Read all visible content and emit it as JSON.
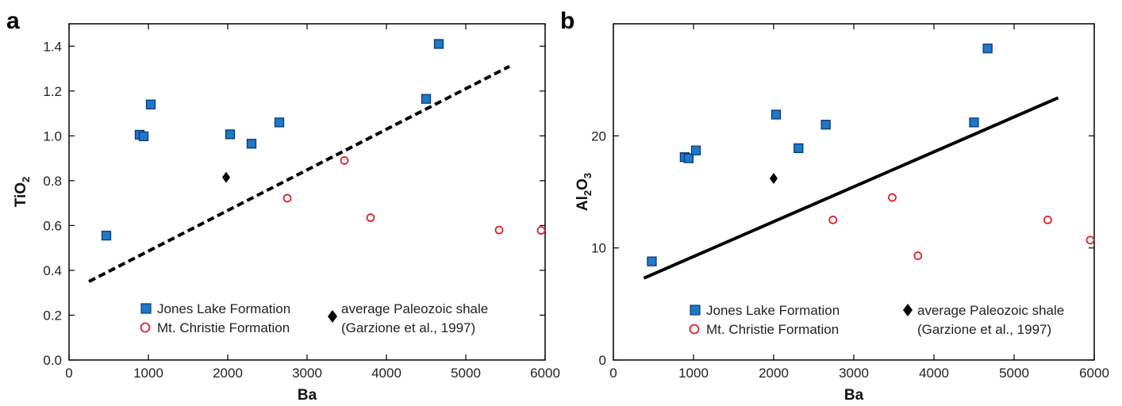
{
  "chart_data": [
    {
      "type": "scatter",
      "panel_label": "a",
      "xlabel": "Ba",
      "ylabel": "TiO",
      "ylabel_sub": "2",
      "xlim": [
        0,
        6000
      ],
      "ylim": [
        0,
        1.5
      ],
      "xticks": [
        0,
        1000,
        2000,
        3000,
        4000,
        5000,
        6000
      ],
      "yticks": [
        0.0,
        0.2,
        0.4,
        0.6,
        0.8,
        1.0,
        1.2,
        1.4
      ],
      "ytick_labels": [
        "0.0",
        "0.2",
        "0.4",
        "0.6",
        "0.8",
        "1.0",
        "1.2",
        "1.4"
      ],
      "series": [
        {
          "name": "Jones Lake Formation",
          "marker": "square",
          "points": [
            [
              470,
              0.555
            ],
            [
              890,
              1.005
            ],
            [
              940,
              0.998
            ],
            [
              1030,
              1.14
            ],
            [
              2030,
              1.007
            ],
            [
              2300,
              0.965
            ],
            [
              2650,
              1.06
            ],
            [
              4500,
              1.165
            ],
            [
              4660,
              1.41
            ]
          ]
        },
        {
          "name": "Mt. Christie Formation",
          "marker": "open-circle",
          "points": [
            [
              2750,
              0.722
            ],
            [
              3470,
              0.89
            ],
            [
              3800,
              0.635
            ],
            [
              5420,
              0.58
            ],
            [
              5950,
              0.578
            ]
          ]
        },
        {
          "name": "average Paleozoic shale",
          "marker": "diamond",
          "points": [
            [
              1980,
              0.815
            ]
          ]
        }
      ],
      "fit_line": {
        "style": "dashed",
        "x": [
          250,
          5550
        ],
        "y": [
          0.35,
          1.31
        ]
      },
      "legend": {
        "placement": "bottom-center",
        "entries": [
          {
            "marker": "square",
            "label": "Jones Lake Formation"
          },
          {
            "marker": "open-circle",
            "label": "Mt. Christie Formation"
          },
          {
            "marker": "diamond",
            "label": "average Paleozoic shale",
            "label2": "(Garzione et al., 1997)"
          }
        ]
      }
    },
    {
      "type": "scatter",
      "panel_label": "b",
      "xlabel": "Ba",
      "ylabel": "Al",
      "ylabel_sub1": "2",
      "ylabel_mid": "O",
      "ylabel_sub2": "3",
      "xlim": [
        0,
        6000
      ],
      "ylim": [
        0,
        30
      ],
      "xticks": [
        0,
        1000,
        2000,
        3000,
        4000,
        5000,
        6000
      ],
      "yticks": [
        0,
        10,
        20
      ],
      "ytick_labels": [
        "0",
        "10",
        "20"
      ],
      "series": [
        {
          "name": "Jones Lake Formation",
          "marker": "square",
          "points": [
            [
              480,
              8.8
            ],
            [
              890,
              18.1
            ],
            [
              940,
              18.0
            ],
            [
              1030,
              18.7
            ],
            [
              2030,
              21.9
            ],
            [
              2310,
              18.9
            ],
            [
              2650,
              21.0
            ],
            [
              4500,
              21.2
            ],
            [
              4670,
              27.8
            ]
          ]
        },
        {
          "name": "Mt. Christie Formation",
          "marker": "open-circle",
          "points": [
            [
              2740,
              12.5
            ],
            [
              3480,
              14.5
            ],
            [
              3800,
              9.3
            ],
            [
              5420,
              12.5
            ],
            [
              5950,
              10.7
            ]
          ]
        },
        {
          "name": "average Paleozoic shale",
          "marker": "diamond",
          "points": [
            [
              2000,
              16.2
            ]
          ]
        }
      ],
      "fit_line": {
        "style": "solid",
        "x": [
          380,
          5550
        ],
        "y": [
          7.3,
          23.4
        ]
      },
      "legend": {
        "placement": "bottom-center",
        "entries": [
          {
            "marker": "square",
            "label": "Jones Lake Formation"
          },
          {
            "marker": "open-circle",
            "label": "Mt. Christie Formation"
          },
          {
            "marker": "diamond",
            "label": "average Paleozoic shale",
            "label2": "(Garzione et al., 1997)"
          }
        ]
      }
    }
  ],
  "colors": {
    "square_fill": "#1f78c8",
    "square_edge": "#0a3a78",
    "circle_edge": "#d9222a",
    "diamond": "#000000",
    "axis": "#000000"
  }
}
